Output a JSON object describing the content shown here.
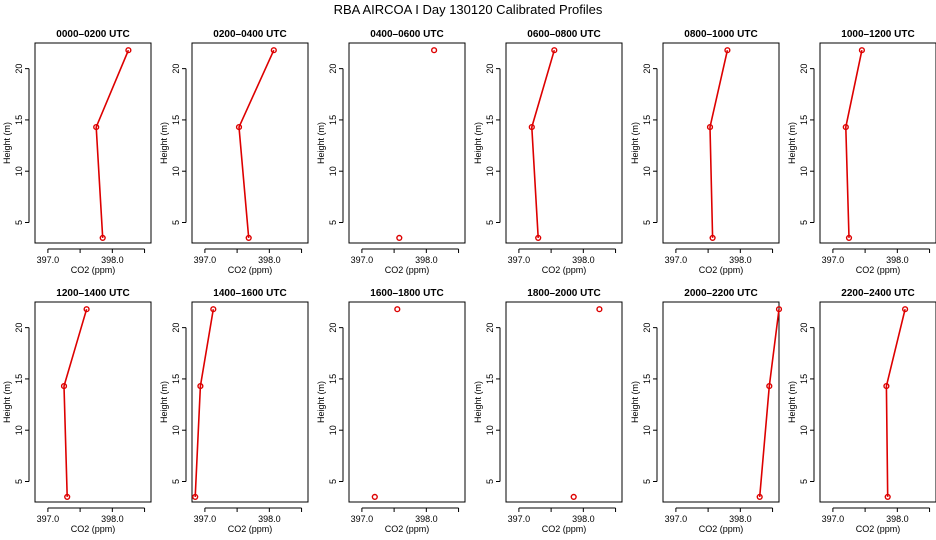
{
  "colors": {
    "series": "#dd0000",
    "axis": "#000000",
    "background": "#ffffff"
  },
  "chart_data": {
    "type": "line",
    "title": "RBA AIRCOA I  Day 130120  Calibrated Profiles",
    "xlabel": "CO2 (ppm)",
    "ylabel": "Height (m)",
    "xlim": [
      396.8,
      398.6
    ],
    "ylim": [
      3,
      22.5
    ],
    "xticks": [
      397.0,
      397.5,
      398.0,
      398.5
    ],
    "xtick_labels": [
      "397.0",
      "",
      "398.0",
      ""
    ],
    "yticks": [
      5,
      10,
      15,
      20
    ],
    "ytick_labels": [
      "5",
      "10",
      "15",
      "20"
    ],
    "heights": [
      3.5,
      14.3,
      21.8
    ],
    "panels": [
      {
        "title": "0000–0200 UTC",
        "co2": [
          397.85,
          397.75,
          398.25
        ],
        "connected": true
      },
      {
        "title": "0200–0400 UTC",
        "co2": [
          397.68,
          397.53,
          398.07
        ],
        "connected": true
      },
      {
        "title": "0400–0600 UTC",
        "co2": [
          397.58,
          null,
          398.12
        ],
        "connected": false
      },
      {
        "title": "0600–0800 UTC",
        "co2": [
          397.3,
          397.2,
          397.55
        ],
        "connected": true
      },
      {
        "title": "0800–1000 UTC",
        "co2": [
          397.57,
          397.53,
          397.8
        ],
        "connected": true
      },
      {
        "title": "1000–1200 UTC",
        "co2": [
          397.25,
          397.2,
          397.45
        ],
        "connected": true
      },
      {
        "title": "1200–1400 UTC",
        "co2": [
          397.3,
          397.25,
          397.6
        ],
        "connected": true
      },
      {
        "title": "1400–1600 UTC",
        "co2": [
          396.85,
          396.93,
          397.13
        ],
        "connected": true
      },
      {
        "title": "1600–1800 UTC",
        "co2": [
          397.2,
          null,
          397.55
        ],
        "connected": false
      },
      {
        "title": "1800–2000 UTC",
        "co2": [
          397.85,
          null,
          398.25
        ],
        "connected": false
      },
      {
        "title": "2000–2200 UTC",
        "co2": [
          398.3,
          398.45,
          398.6
        ],
        "connected": true
      },
      {
        "title": "2200–2400 UTC",
        "co2": [
          397.85,
          397.83,
          398.12
        ],
        "connected": true
      }
    ]
  }
}
